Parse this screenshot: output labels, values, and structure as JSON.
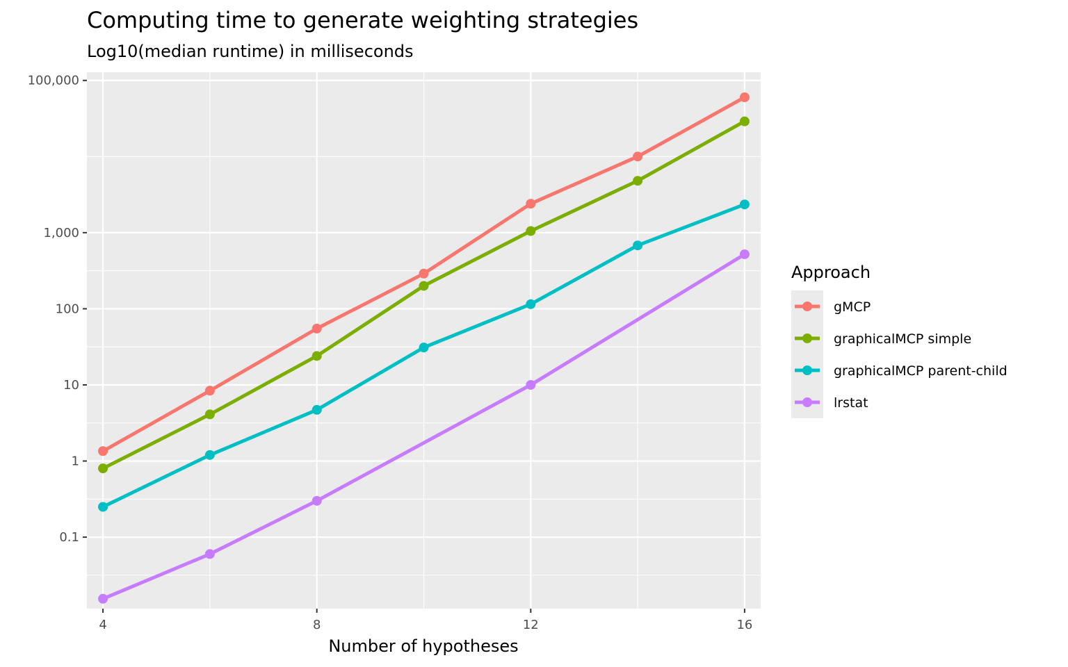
{
  "chart_data": {
    "type": "line",
    "title": "Computing time to generate weighting strategies",
    "subtitle": "Log10(median runtime) in milliseconds",
    "xlabel": "Number of hypotheses",
    "ylabel": "",
    "x_scale": "linear",
    "y_scale": "log10",
    "xlim": [
      3.7,
      16.3
    ],
    "ylim": [
      0.0115,
      128000
    ],
    "x_ticks": [
      4,
      8,
      12,
      16
    ],
    "x_tick_labels": [
      "4",
      "8",
      "12",
      "16"
    ],
    "y_ticks": [
      0.1,
      1,
      10,
      100,
      1000,
      100000
    ],
    "y_tick_labels": [
      "0.1",
      "1",
      "10",
      "100",
      "1,000",
      "100,000"
    ],
    "x": [
      4,
      6,
      8,
      10,
      12,
      14,
      16
    ],
    "grid": true,
    "legend": {
      "title": "Approach",
      "position": "right"
    },
    "series": [
      {
        "name": "gMCP",
        "color": "#F8766D",
        "values": [
          1.35,
          8.4,
          55,
          290,
          2400,
          10000,
          60000
        ]
      },
      {
        "name": "graphicalMCP simple",
        "color": "#7CAE00",
        "values": [
          0.8,
          4.1,
          24,
          200,
          1050,
          4800,
          29000
        ]
      },
      {
        "name": "graphicalMCP parent-child",
        "color": "#00BFC4",
        "values": [
          0.25,
          1.2,
          4.7,
          31,
          115,
          680,
          2350
        ]
      },
      {
        "name": "lrstat",
        "color": "#C77CFF",
        "values": [
          0.0155,
          0.06,
          0.3,
          null,
          10,
          null,
          520
        ]
      }
    ]
  }
}
